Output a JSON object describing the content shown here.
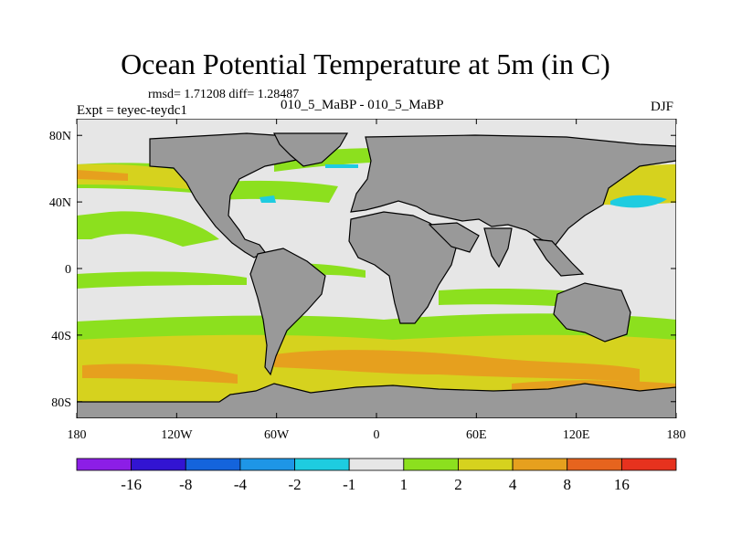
{
  "header": {
    "title": "Ocean Potential Temperature at 5m (in C)",
    "stats": "rmsd= 1.71208  diff= 1.28487",
    "expt": "Expt = teyec-teydc1",
    "runs": "010_5_MaBP - 010_5_MaBP",
    "season": "DJF"
  },
  "chart_data": {
    "type": "heatmap",
    "title": "Ocean Potential Temperature at 5m (in C)",
    "xlabel": "",
    "ylabel": "",
    "xlim": [
      -180,
      180
    ],
    "ylim": [
      -90,
      90
    ],
    "x_ticks": [
      {
        "value": -180,
        "label": "180"
      },
      {
        "value": -120,
        "label": "120W"
      },
      {
        "value": -60,
        "label": "60W"
      },
      {
        "value": 0,
        "label": "0"
      },
      {
        "value": 60,
        "label": "60E"
      },
      {
        "value": 120,
        "label": "120E"
      },
      {
        "value": 180,
        "label": "180"
      }
    ],
    "y_ticks": [
      {
        "value": 80,
        "label": "80N"
      },
      {
        "value": 40,
        "label": "40N"
      },
      {
        "value": 0,
        "label": "0"
      },
      {
        "value": -40,
        "label": "40S"
      },
      {
        "value": -80,
        "label": "80S"
      }
    ],
    "land_color": "#999999",
    "colorbar": {
      "bins": [
        {
          "lo": null,
          "hi": -16,
          "color": "#8c1ee6"
        },
        {
          "lo": -16,
          "hi": -8,
          "color": "#3214d2"
        },
        {
          "lo": -8,
          "hi": -4,
          "color": "#1464dc"
        },
        {
          "lo": -4,
          "hi": -2,
          "color": "#1e96e6"
        },
        {
          "lo": -2,
          "hi": -1,
          "color": "#1ecce0"
        },
        {
          "lo": -1,
          "hi": 1,
          "color": "#e6e6e6"
        },
        {
          "lo": 1,
          "hi": 2,
          "color": "#8ce01e"
        },
        {
          "lo": 2,
          "hi": 4,
          "color": "#d6d21e"
        },
        {
          "lo": 4,
          "hi": 8,
          "color": "#e6a01e"
        },
        {
          "lo": 8,
          "hi": 16,
          "color": "#e6641e"
        },
        {
          "lo": 16,
          "hi": null,
          "color": "#e6321e"
        }
      ],
      "labels": [
        "-16",
        "-8",
        "-4",
        "-2",
        "-1",
        "1",
        "2",
        "4",
        "8",
        "16"
      ]
    }
  }
}
